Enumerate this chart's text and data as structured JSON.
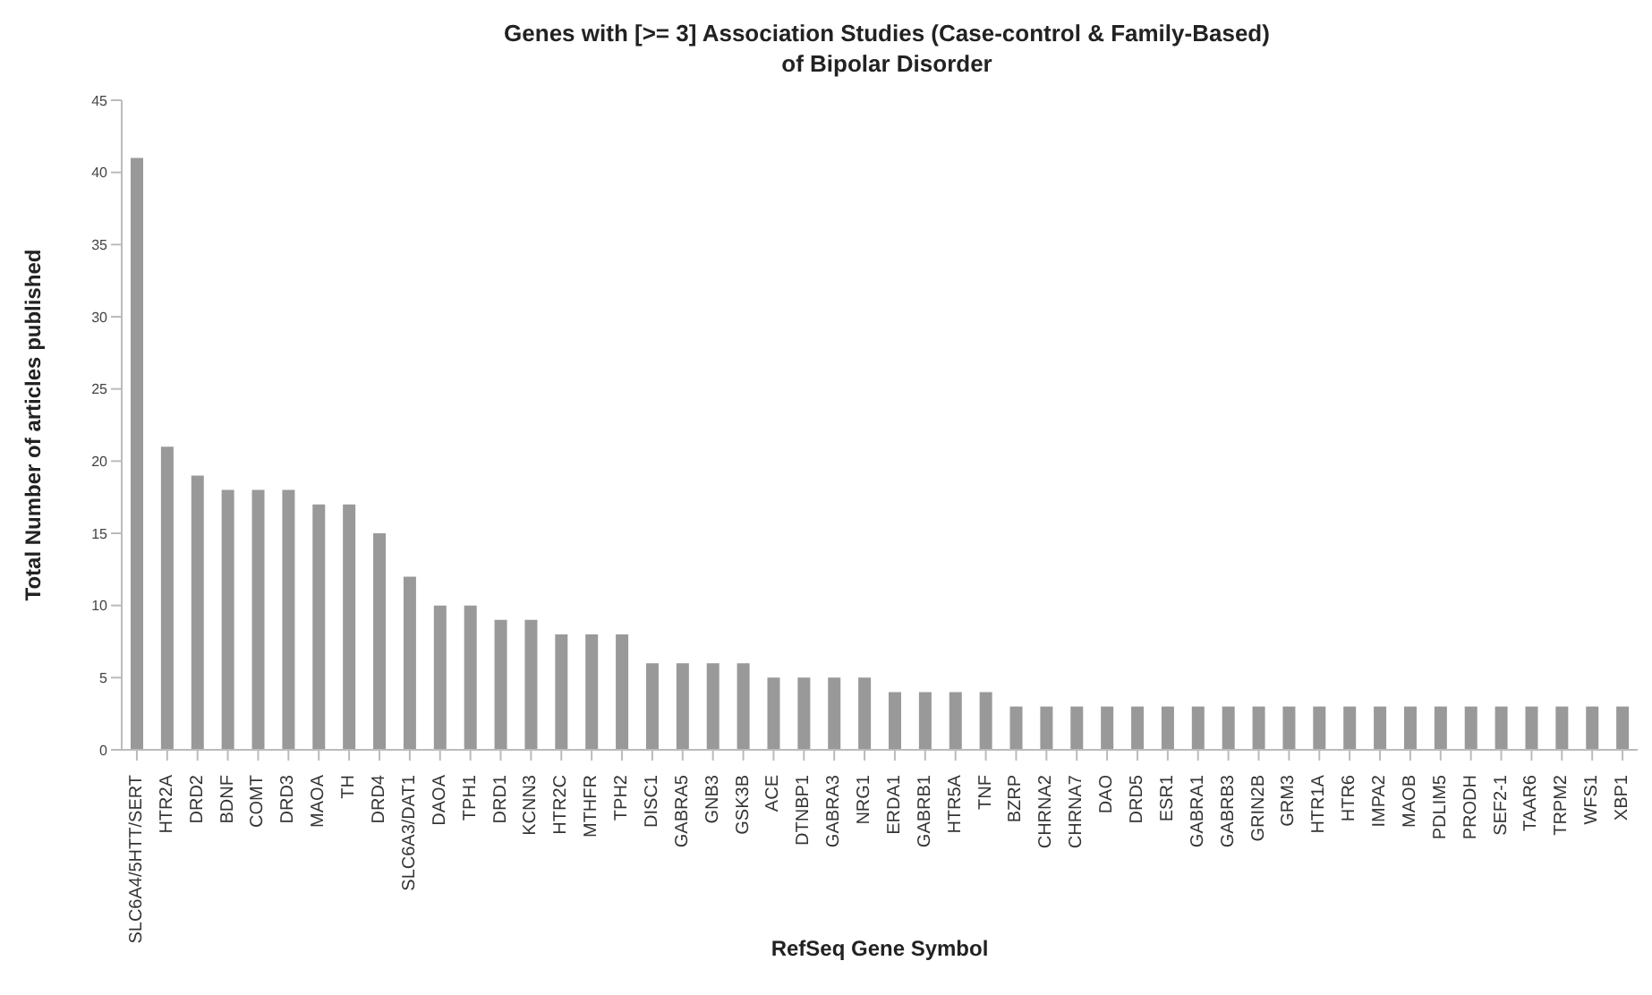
{
  "chart_data": {
    "type": "bar",
    "title": "Genes with [>= 3] Association Studies (Case-control & Family-Based)\nof Bipolar Disorder",
    "xlabel": "RefSeq Gene Symbol",
    "ylabel": "Total Number of articles published",
    "categories": [
      "SLC6A4/5HTT/SERT",
      "HTR2A",
      "DRD2",
      "BDNF",
      "COMT",
      "DRD3",
      "MAOA",
      "TH",
      "DRD4",
      "SLC6A3/DAT1",
      "DAOA",
      "TPH1",
      "DRD1",
      "KCNN3",
      "HTR2C",
      "MTHFR",
      "TPH2",
      "DISC1",
      "GABRA5",
      "GNB3",
      "GSK3B",
      "ACE",
      "DTNBP1",
      "GABRA3",
      "NRG1",
      "ERDA1",
      "GABRB1",
      "HTR5A",
      "TNF",
      "BZRP",
      "CHRNA2",
      "CHRNA7",
      "DAO",
      "DRD5",
      "ESR1",
      "GABRA1",
      "GABRB3",
      "GRIN2B",
      "GRM3",
      "HTR1A",
      "HTR6",
      "IMPA2",
      "MAOB",
      "PDLIM5",
      "PRODH",
      "SEF2-1",
      "TAAR6",
      "TRPM2",
      "WFS1",
      "XBP1"
    ],
    "values": [
      41,
      21,
      19,
      18,
      18,
      18,
      17,
      17,
      15,
      12,
      10,
      10,
      9,
      9,
      8,
      8,
      8,
      6,
      6,
      6,
      6,
      5,
      5,
      5,
      5,
      4,
      4,
      4,
      4,
      3,
      3,
      3,
      3,
      3,
      3,
      3,
      3,
      3,
      3,
      3,
      3,
      3,
      3,
      3,
      3,
      3,
      3,
      3,
      3,
      3
    ],
    "color": "#999999",
    "ylim": [
      0,
      45
    ],
    "yticks": [
      0,
      5,
      10,
      15,
      20,
      25,
      30,
      35,
      40,
      45
    ],
    "grid": false
  }
}
